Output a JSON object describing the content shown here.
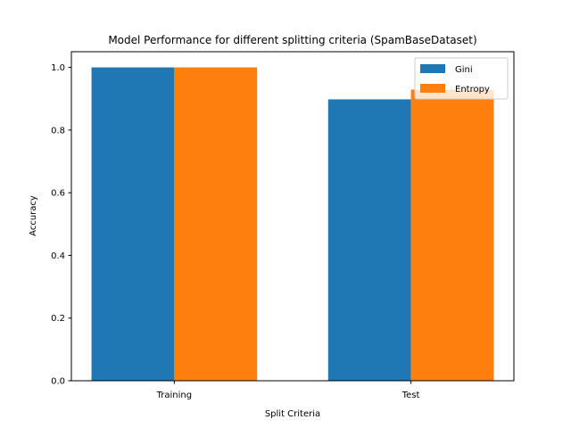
{
  "chart_data": {
    "type": "bar",
    "title": "Model Performance for different splitting criteria (SpamBaseDataset)",
    "xlabel": "Split Criteria",
    "ylabel": "Accuracy",
    "categories": [
      "Training",
      "Test"
    ],
    "series": [
      {
        "name": "Gini",
        "values": [
          1.0,
          0.898
        ],
        "color": "#1f77b4"
      },
      {
        "name": "Entropy",
        "values": [
          1.0,
          0.929
        ],
        "color": "#ff7f0e"
      }
    ],
    "ylim": [
      0,
      1.05
    ],
    "yticks": [
      "0.0",
      "0.2",
      "0.4",
      "0.6",
      "0.8",
      "1.0"
    ],
    "grid": false,
    "legend_position": "top-right"
  }
}
